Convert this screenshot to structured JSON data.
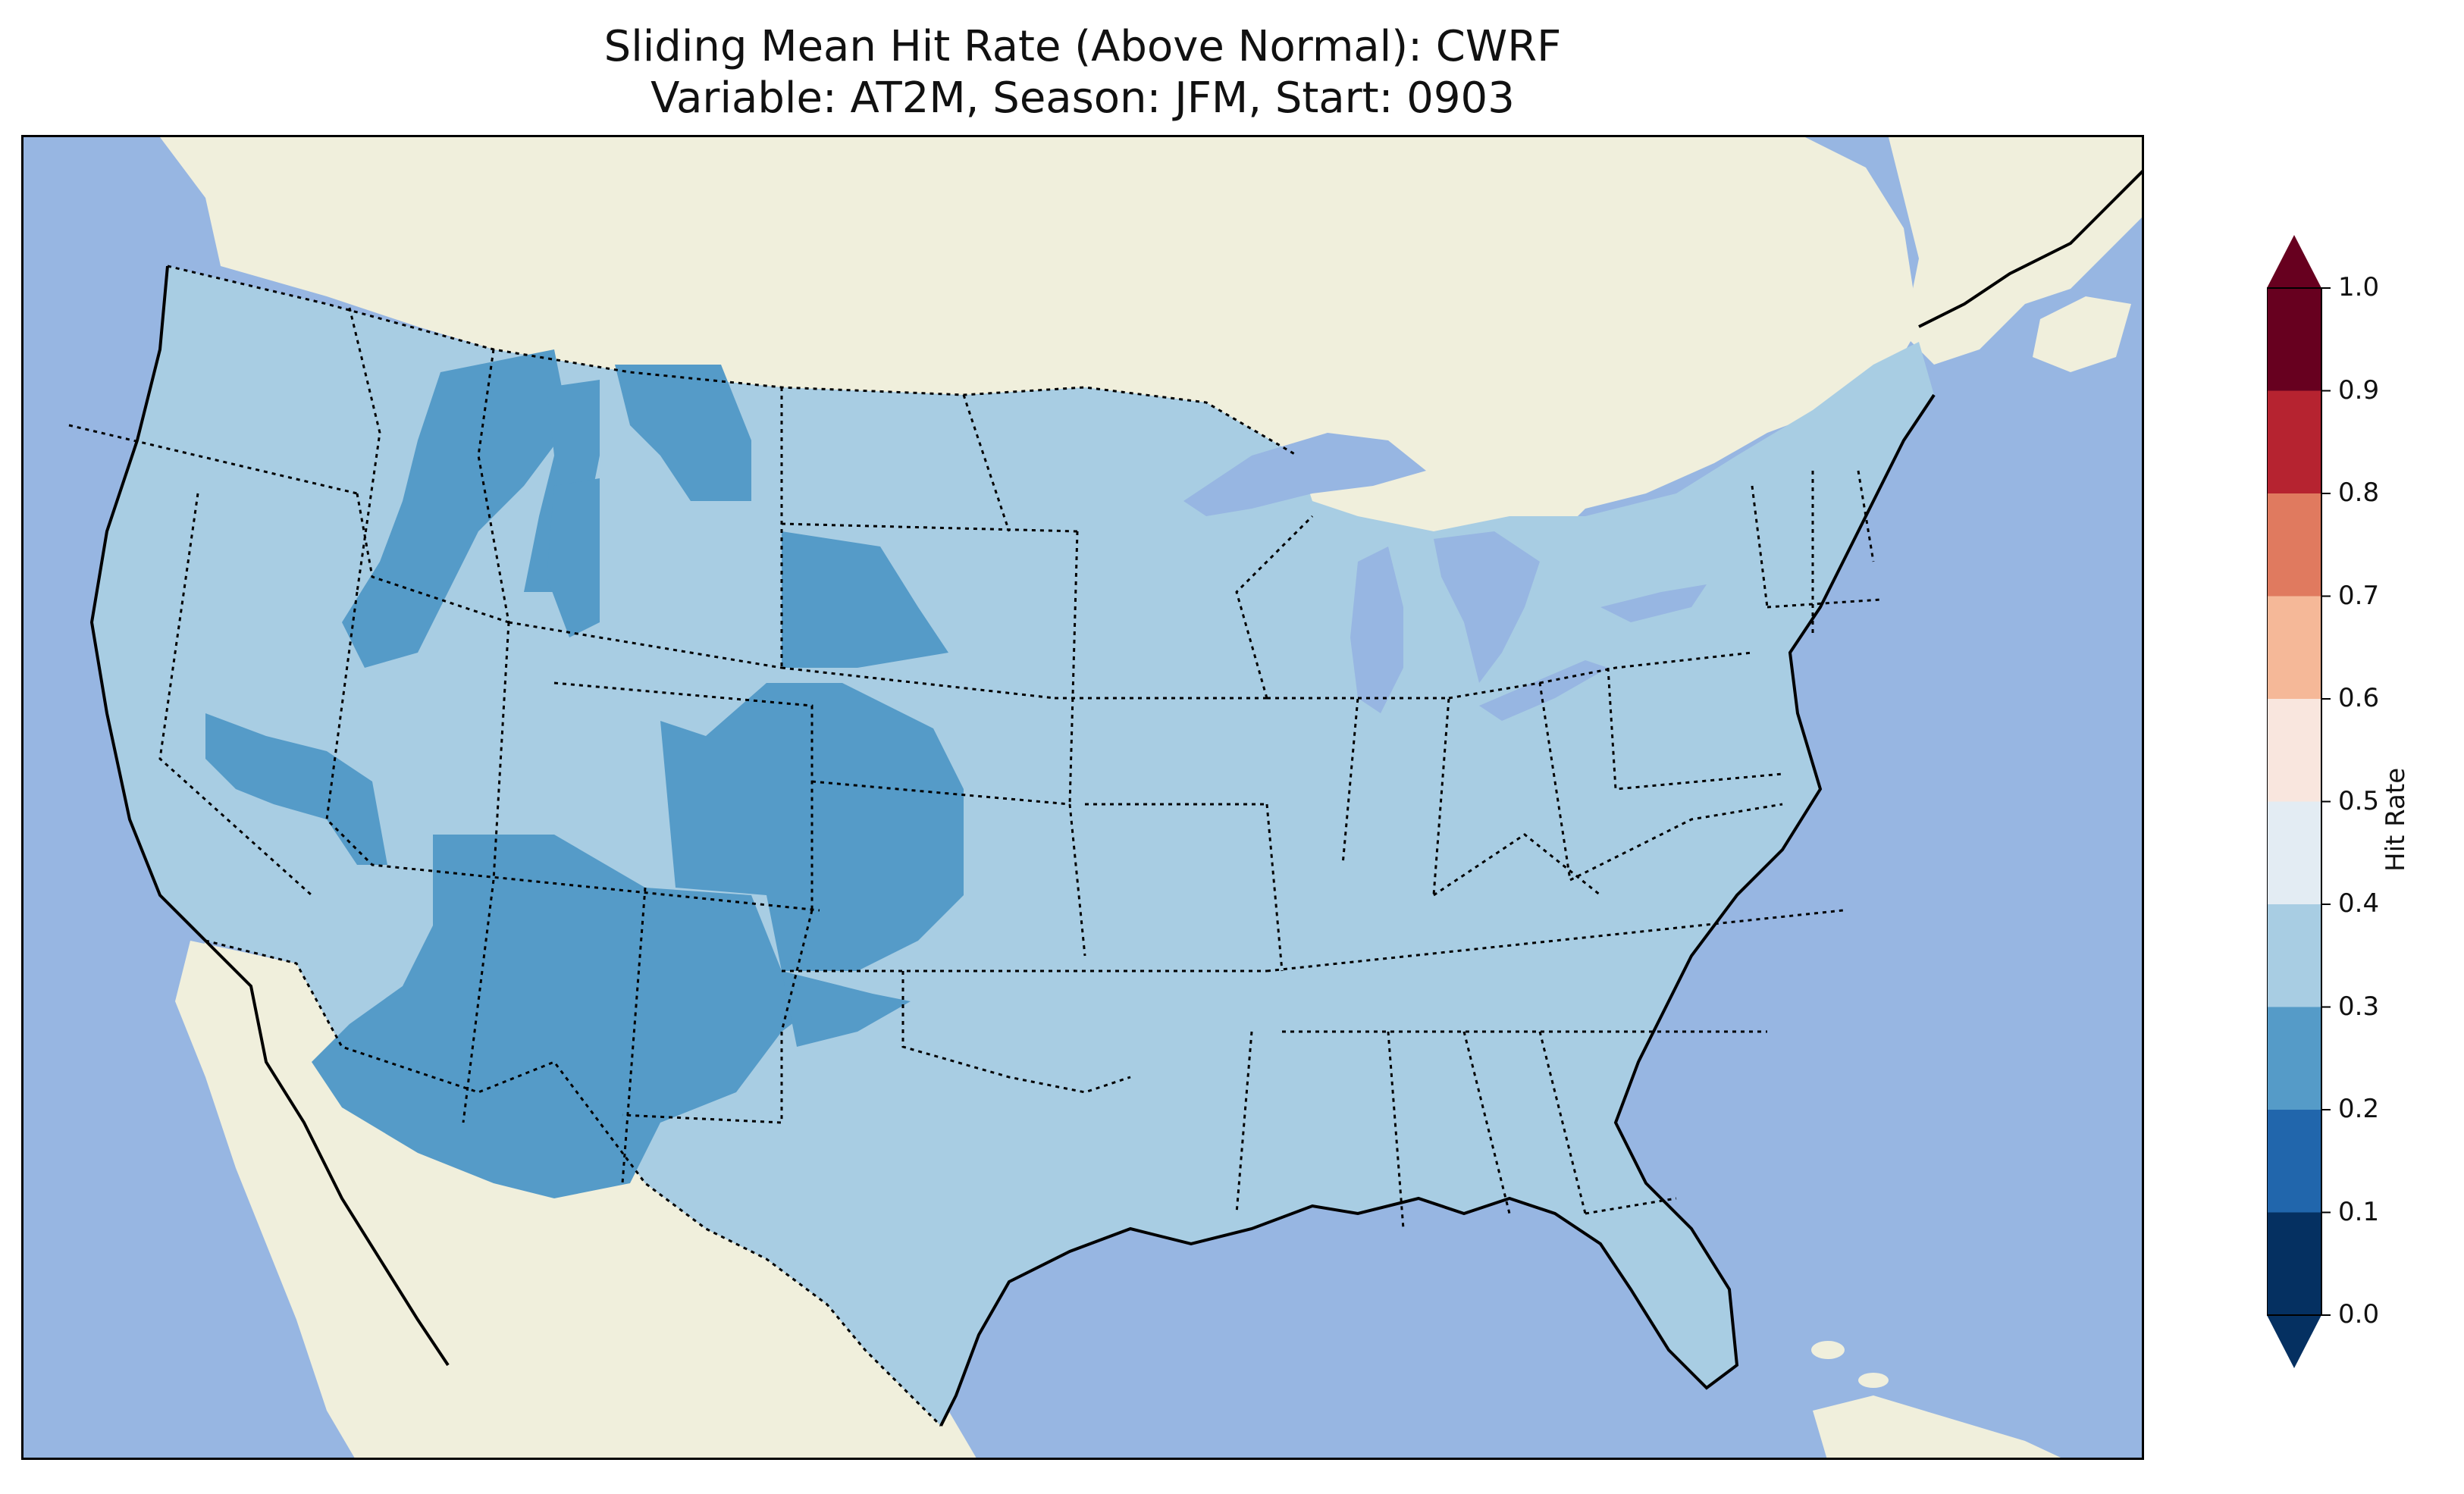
{
  "title": {
    "line1": "Sliding Mean Hit Rate (Above Normal): CWRF",
    "line2": "Variable: AT2M, Season: JFM, Start: 0903"
  },
  "map": {
    "ocean_color": "#97b6e2",
    "land_color": "#f0efdc",
    "hit_03_04_color": "#a8cde3",
    "hit_02_03_color": "#559bc8"
  },
  "colorbar": {
    "label": "Hit Rate",
    "ticks": [
      "0.0",
      "0.1",
      "0.2",
      "0.3",
      "0.4",
      "0.5",
      "0.6",
      "0.7",
      "0.8",
      "0.9",
      "1.0"
    ],
    "colors": [
      "#053061",
      "#2166ac",
      "#4393c3",
      "#92c5de",
      "#d1e5f0",
      "#f7f7f7",
      "#fddbc7",
      "#f4a582",
      "#d6604d",
      "#b2182b",
      "#67001f"
    ],
    "bins": [
      {
        "lo": 0.0,
        "hi": 0.1,
        "color": "#053061"
      },
      {
        "lo": 0.1,
        "hi": 0.2,
        "color": "#2166ac"
      },
      {
        "lo": 0.2,
        "hi": 0.3,
        "color": "#559bc8"
      },
      {
        "lo": 0.3,
        "hi": 0.4,
        "color": "#a8cde3"
      },
      {
        "lo": 0.4,
        "hi": 0.5,
        "color": "#e3ecf3"
      },
      {
        "lo": 0.5,
        "hi": 0.6,
        "color": "#f9e6de"
      },
      {
        "lo": 0.6,
        "hi": 0.7,
        "color": "#f5b898"
      },
      {
        "lo": 0.7,
        "hi": 0.8,
        "color": "#e07a5f"
      },
      {
        "lo": 0.8,
        "hi": 0.9,
        "color": "#b62330"
      }
    ],
    "under_color": "#053061",
    "over_color": "#67001f"
  }
}
